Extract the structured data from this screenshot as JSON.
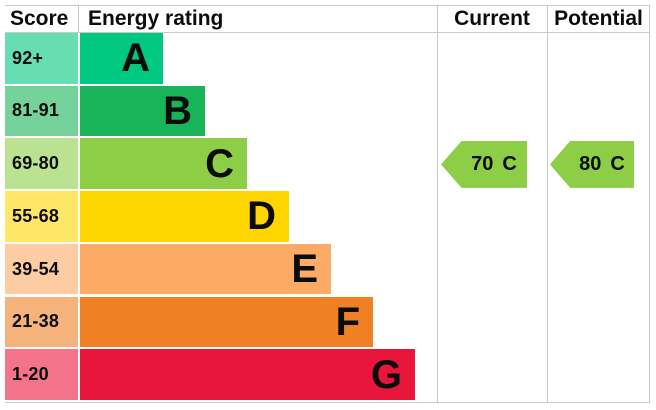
{
  "header": {
    "score": "Score",
    "energy_rating": "Energy rating",
    "current": "Current",
    "potential": "Potential"
  },
  "bands": [
    {
      "range": "92+",
      "letter": "A",
      "bar_color": "#00c781",
      "score_color": "#66ddb3"
    },
    {
      "range": "81-91",
      "letter": "B",
      "bar_color": "#19b459",
      "score_color": "#75d29b"
    },
    {
      "range": "69-80",
      "letter": "C",
      "bar_color": "#8dce46",
      "score_color": "#bbe290"
    },
    {
      "range": "55-68",
      "letter": "D",
      "bar_color": "#ffd500",
      "score_color": "#ffe666"
    },
    {
      "range": "39-54",
      "letter": "E",
      "bar_color": "#fcaa65",
      "score_color": "#fdcca3"
    },
    {
      "range": "21-38",
      "letter": "F",
      "bar_color": "#ef8023",
      "score_color": "#f5b37b"
    },
    {
      "range": "1-20",
      "letter": "G",
      "bar_color": "#e9153b",
      "score_color": "#f2738a"
    }
  ],
  "current_rating": {
    "value": "70",
    "band": "C",
    "arrow_color": "#8dce46"
  },
  "potential_rating": {
    "value": "80",
    "band": "C",
    "arrow_color": "#8dce46"
  },
  "line_color": "#c9c9c9",
  "chart_data": {
    "type": "bar",
    "title": "EPC energy rating chart",
    "columns": [
      "Score",
      "Energy rating",
      "Current",
      "Potential"
    ],
    "categories": [
      "A",
      "B",
      "C",
      "D",
      "E",
      "F",
      "G"
    ],
    "score_ranges": [
      "92+",
      "81-91",
      "69-80",
      "55-68",
      "39-54",
      "21-38",
      "1-20"
    ],
    "band_colors": [
      "#00c781",
      "#19b459",
      "#8dce46",
      "#ffd500",
      "#fcaa65",
      "#ef8023",
      "#e9153b"
    ],
    "bar_lengths_relative": [
      1,
      2,
      3,
      4,
      5,
      6,
      7
    ],
    "current": {
      "value": 70,
      "band": "C"
    },
    "potential": {
      "value": 80,
      "band": "C"
    }
  }
}
